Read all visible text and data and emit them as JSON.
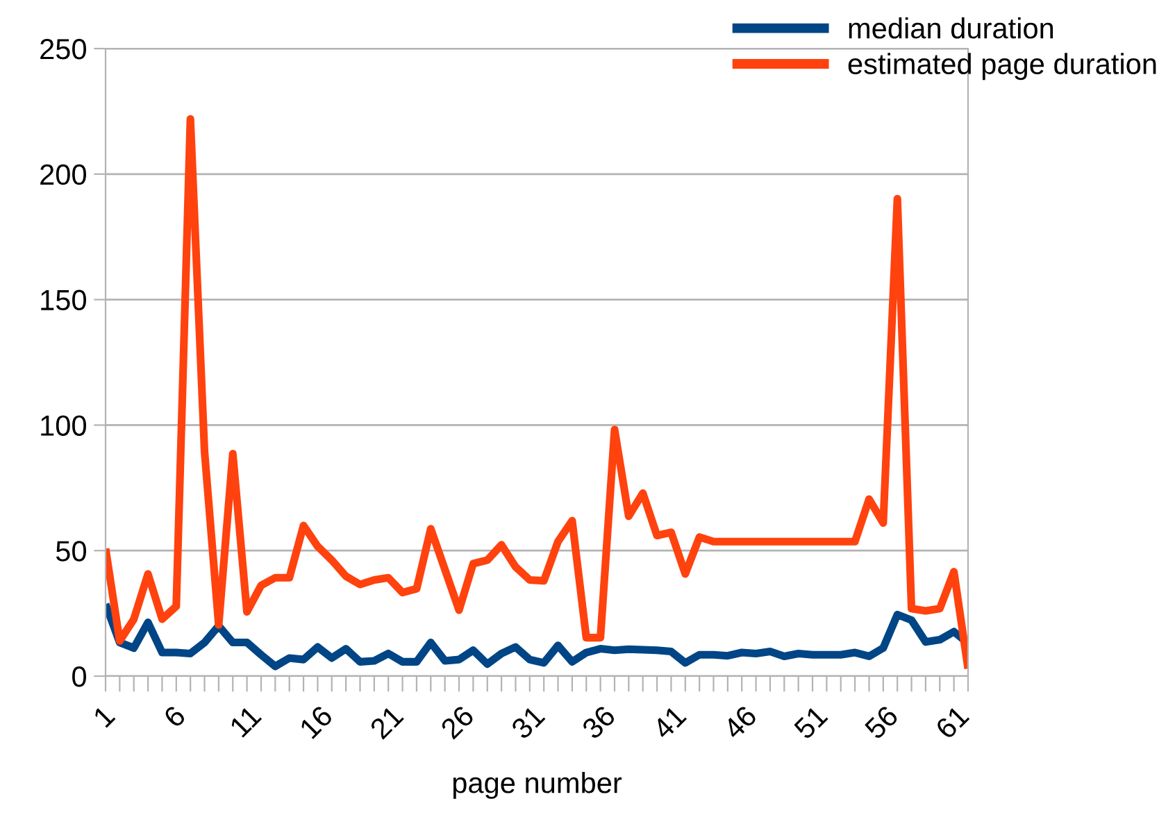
{
  "chart_data": {
    "type": "line",
    "xlabel": "page number",
    "categories": [
      "1",
      null,
      null,
      null,
      null,
      "6",
      null,
      null,
      null,
      null,
      "11",
      null,
      null,
      null,
      null,
      "16",
      null,
      null,
      null,
      null,
      "21",
      null,
      null,
      null,
      null,
      "26",
      null,
      null,
      null,
      null,
      "31",
      null,
      null,
      null,
      null,
      "36",
      null,
      null,
      null,
      null,
      "41",
      null,
      null,
      null,
      null,
      "46",
      null,
      null,
      null,
      null,
      "51",
      null,
      null,
      null,
      null,
      "56",
      null,
      null,
      null,
      null,
      "61",
      null
    ],
    "series": [
      {
        "name": "median duration",
        "color": "#004586",
        "values": [
          28.7,
          13.4,
          11.2,
          21.4,
          9.4,
          9.4,
          9,
          13.4,
          20,
          13.4,
          13.4,
          8.5,
          3.9,
          7.2,
          6.6,
          11.6,
          7.2,
          10.9,
          5.7,
          6.1,
          9,
          5.7,
          5.7,
          13.4,
          6.1,
          6.6,
          10.3,
          4.8,
          9,
          11.6,
          6.6,
          5.3,
          12.2,
          5.7,
          9.4,
          10.9,
          10.3,
          10.7,
          10.5,
          10.3,
          9.8,
          5.3,
          8.5,
          8.5,
          8.1,
          9.4,
          9,
          9.8,
          7.9,
          9,
          8.5,
          8.5,
          8.5,
          9.4,
          7.9,
          11.2,
          24.5,
          22.3,
          13.6,
          14.5,
          17.7,
          13.1
        ]
      },
      {
        "name": "estimated page duration",
        "color": "#ff420e",
        "values": [
          50.8,
          14,
          22.7,
          40.7,
          22.7,
          27.8,
          222,
          89.5,
          20.4,
          88.6,
          25.6,
          36.1,
          39.2,
          39.2,
          60,
          51.7,
          46.2,
          39.8,
          36.5,
          38.3,
          39.2,
          33.3,
          34.8,
          58.7,
          42.5,
          26.3,
          44.8,
          46.2,
          52.3,
          43.5,
          38.3,
          38,
          53.6,
          61.9,
          15.3,
          15.3,
          98.2,
          63.7,
          72.9,
          56,
          57.3,
          40.7,
          55.4,
          53.6,
          53.6,
          53.6,
          53.6,
          53.6,
          53.6,
          53.6,
          53.6,
          53.6,
          53.6,
          53.6,
          70.5,
          61,
          190.2,
          26.9,
          26,
          26.9,
          41.6,
          3
        ]
      }
    ],
    "ylim": [
      0,
      250
    ],
    "yticks": [
      0,
      50,
      100,
      150,
      200,
      250
    ],
    "grid": "y",
    "legend": "top right",
    "marker": "none",
    "line_style": "solid"
  }
}
